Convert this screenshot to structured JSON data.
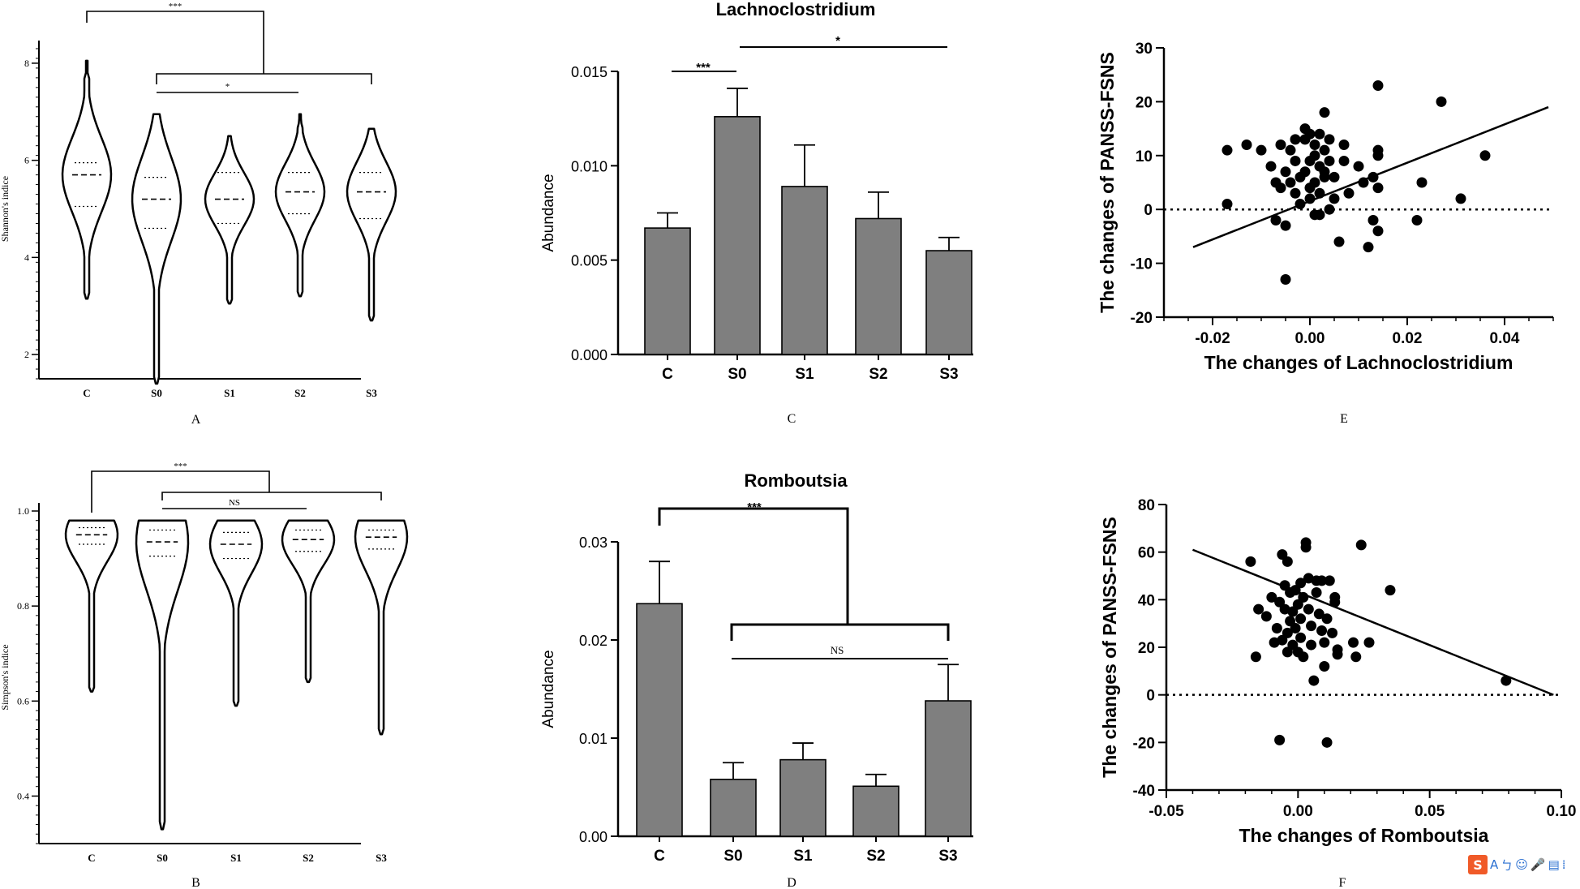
{
  "chart_data": [
    {
      "id": "A",
      "type": "violin",
      "panel_label": "A",
      "ylabel": "Shannon's indice",
      "ylim": [
        1.5,
        8.5
      ],
      "yticks": [
        2,
        4,
        6,
        8
      ],
      "categories": [
        "C",
        "S0",
        "S1",
        "S2",
        "S3"
      ],
      "groups": [
        {
          "name": "C",
          "min": 3.15,
          "max": 8.05,
          "q1": 5.05,
          "median": 5.7,
          "q3": 5.95
        },
        {
          "name": "S0",
          "min": 1.4,
          "max": 6.95,
          "q1": 4.6,
          "median": 5.2,
          "q3": 5.65
        },
        {
          "name": "S1",
          "min": 3.05,
          "max": 6.5,
          "q1": 4.7,
          "median": 5.2,
          "q3": 5.75
        },
        {
          "name": "S2",
          "min": 3.2,
          "max": 6.95,
          "q1": 4.9,
          "median": 5.35,
          "q3": 5.75
        },
        {
          "name": "S3",
          "min": 2.7,
          "max": 6.65,
          "q1": 4.8,
          "median": 5.35,
          "q3": 5.75
        }
      ],
      "annotations": [
        {
          "from": "C",
          "to": "S0-S3",
          "label": "***"
        },
        {
          "from": "S0",
          "to": "S3",
          "label": ""
        },
        {
          "from": "S0",
          "to": "S2",
          "label": "*"
        }
      ]
    },
    {
      "id": "B",
      "type": "violin",
      "panel_label": "B",
      "ylabel": "Simpson's indice",
      "ylim": [
        0.3,
        1.0
      ],
      "yticks": [
        0.4,
        0.6,
        0.8,
        1.0
      ],
      "categories": [
        "C",
        "S0",
        "S1",
        "S2",
        "S3"
      ],
      "groups": [
        {
          "name": "C",
          "min": 0.62,
          "max": 0.98,
          "q1": 0.93,
          "median": 0.95,
          "q3": 0.965
        },
        {
          "name": "S0",
          "min": 0.33,
          "max": 0.98,
          "q1": 0.905,
          "median": 0.935,
          "q3": 0.96
        },
        {
          "name": "S1",
          "min": 0.59,
          "max": 0.98,
          "q1": 0.9,
          "median": 0.93,
          "q3": 0.955
        },
        {
          "name": "S2",
          "min": 0.64,
          "max": 0.98,
          "q1": 0.915,
          "median": 0.94,
          "q3": 0.96
        },
        {
          "name": "S3",
          "min": 0.53,
          "max": 0.98,
          "q1": 0.92,
          "median": 0.945,
          "q3": 0.96
        }
      ],
      "annotations": [
        {
          "from": "C",
          "to": "S0-S3",
          "label": "***"
        },
        {
          "from": "S0",
          "to": "S3",
          "label": ""
        },
        {
          "from": "S0",
          "to": "S2",
          "label": "NS"
        }
      ]
    },
    {
      "id": "C",
      "type": "bar",
      "panel_label": "C",
      "title": "Lachnoclostridium",
      "xlabel": "",
      "ylabel": "Abundance",
      "ylim": [
        0,
        0.015
      ],
      "yticks": [
        "0.000",
        "0.005",
        "0.010",
        "0.015"
      ],
      "categories": [
        "C",
        "S0",
        "S1",
        "S2",
        "S3"
      ],
      "values": [
        0.0067,
        0.0126,
        0.0089,
        0.0072,
        0.0055
      ],
      "errors": [
        0.0008,
        0.0015,
        0.0022,
        0.0014,
        0.0007
      ],
      "annotations": [
        {
          "from": "C",
          "to": "S0",
          "label": "***"
        },
        {
          "from": "S0",
          "to": "S3",
          "label": "*"
        }
      ]
    },
    {
      "id": "D",
      "type": "bar",
      "panel_label": "D",
      "title": "Romboutsia",
      "xlabel": "",
      "ylabel": "Abundance",
      "ylim": [
        0,
        0.03
      ],
      "yticks": [
        "0.00",
        "0.01",
        "0.02",
        "0.03"
      ],
      "categories": [
        "C",
        "S0",
        "S1",
        "S2",
        "S3"
      ],
      "values": [
        0.0237,
        0.0058,
        0.0078,
        0.0051,
        0.0138
      ],
      "errors": [
        0.0043,
        0.0017,
        0.0017,
        0.0012,
        0.0037
      ],
      "annotations": [
        {
          "from": "C",
          "to": "S0-S3",
          "label": "***"
        },
        {
          "from": "S0",
          "to": "S3",
          "label": "NS"
        }
      ]
    },
    {
      "id": "E",
      "type": "scatter",
      "panel_label": "E",
      "xlabel": "The changes of Lachnoclostridium",
      "ylabel": "The changes of PANSS-FSNS",
      "xlim": [
        -0.03,
        0.05
      ],
      "ylim": [
        -20,
        30
      ],
      "xticks": [
        "-0.02",
        "0.00",
        "0.02",
        "0.04"
      ],
      "yticks": [
        "-20",
        "-10",
        "0",
        "10",
        "20",
        "30"
      ],
      "fit_line": [
        [
          -0.024,
          -7
        ],
        [
          0.049,
          19
        ]
      ],
      "reference_line_y": 0,
      "points": [
        [
          -0.017,
          1
        ],
        [
          -0.017,
          11
        ],
        [
          -0.013,
          12
        ],
        [
          -0.01,
          11
        ],
        [
          -0.008,
          8
        ],
        [
          -0.007,
          5
        ],
        [
          -0.007,
          -2
        ],
        [
          -0.006,
          4
        ],
        [
          -0.006,
          12
        ],
        [
          -0.005,
          -13
        ],
        [
          -0.005,
          -3
        ],
        [
          -0.005,
          7
        ],
        [
          -0.004,
          5
        ],
        [
          -0.004,
          11
        ],
        [
          -0.003,
          13
        ],
        [
          -0.003,
          3
        ],
        [
          -0.003,
          9
        ],
        [
          -0.002,
          6
        ],
        [
          -0.002,
          1
        ],
        [
          -0.001,
          13
        ],
        [
          -0.001,
          15
        ],
        [
          -0.001,
          7
        ],
        [
          0.0,
          14
        ],
        [
          0.0,
          2
        ],
        [
          0.0,
          9
        ],
        [
          0.0,
          4
        ],
        [
          0.001,
          -1
        ],
        [
          0.001,
          12
        ],
        [
          0.001,
          5
        ],
        [
          0.001,
          10
        ],
        [
          0.002,
          8
        ],
        [
          0.002,
          -1
        ],
        [
          0.002,
          14
        ],
        [
          0.002,
          3
        ],
        [
          0.003,
          6
        ],
        [
          0.003,
          11
        ],
        [
          0.003,
          18
        ],
        [
          0.003,
          7
        ],
        [
          0.004,
          9
        ],
        [
          0.004,
          0
        ],
        [
          0.004,
          13
        ],
        [
          0.005,
          6
        ],
        [
          0.005,
          2
        ],
        [
          0.006,
          -6
        ],
        [
          0.007,
          12
        ],
        [
          0.007,
          9
        ],
        [
          0.008,
          3
        ],
        [
          0.01,
          8
        ],
        [
          0.011,
          5
        ],
        [
          0.012,
          -7
        ],
        [
          0.013,
          -2
        ],
        [
          0.013,
          6
        ],
        [
          0.014,
          -4
        ],
        [
          0.014,
          4
        ],
        [
          0.014,
          10
        ],
        [
          0.014,
          11
        ],
        [
          0.014,
          23
        ],
        [
          0.022,
          -2
        ],
        [
          0.023,
          5
        ],
        [
          0.027,
          20
        ],
        [
          0.031,
          2
        ],
        [
          0.036,
          10
        ]
      ]
    },
    {
      "id": "F",
      "type": "scatter",
      "panel_label": "F",
      "xlabel": "The changes of Romboutsia",
      "ylabel": "The changes of PANSS-FSNS",
      "xlim": [
        -0.05,
        0.1
      ],
      "ylim": [
        -40,
        80
      ],
      "xticks": [
        "-0.05",
        "0.00",
        "0.05",
        "0.10"
      ],
      "yticks": [
        "-40",
        "-20",
        "0",
        "20",
        "40",
        "60",
        "80"
      ],
      "fit_line": [
        [
          -0.04,
          61
        ],
        [
          0.097,
          0
        ]
      ],
      "reference_line_y": 0,
      "points": [
        [
          -0.018,
          56
        ],
        [
          -0.016,
          16
        ],
        [
          -0.015,
          36
        ],
        [
          -0.012,
          33
        ],
        [
          -0.01,
          41
        ],
        [
          -0.009,
          22
        ],
        [
          -0.008,
          28
        ],
        [
          -0.007,
          39
        ],
        [
          -0.007,
          -19
        ],
        [
          -0.006,
          59
        ],
        [
          -0.006,
          23
        ],
        [
          -0.005,
          46
        ],
        [
          -0.005,
          36
        ],
        [
          -0.004,
          56
        ],
        [
          -0.004,
          26
        ],
        [
          -0.004,
          18
        ],
        [
          -0.003,
          43
        ],
        [
          -0.003,
          31
        ],
        [
          -0.002,
          21
        ],
        [
          -0.002,
          35
        ],
        [
          -0.001,
          44
        ],
        [
          -0.001,
          28
        ],
        [
          0.0,
          38
        ],
        [
          0.0,
          18
        ],
        [
          0.001,
          47
        ],
        [
          0.001,
          24
        ],
        [
          0.001,
          32
        ],
        [
          0.002,
          41
        ],
        [
          0.002,
          16
        ],
        [
          0.003,
          64
        ],
        [
          0.003,
          62
        ],
        [
          0.004,
          49
        ],
        [
          0.004,
          36
        ],
        [
          0.005,
          29
        ],
        [
          0.005,
          21
        ],
        [
          0.006,
          6
        ],
        [
          0.007,
          43
        ],
        [
          0.007,
          48
        ],
        [
          0.008,
          34
        ],
        [
          0.009,
          48
        ],
        [
          0.009,
          27
        ],
        [
          0.01,
          22
        ],
        [
          0.01,
          12
        ],
        [
          0.011,
          32
        ],
        [
          0.011,
          -20
        ],
        [
          0.012,
          48
        ],
        [
          0.013,
          26
        ],
        [
          0.014,
          41
        ],
        [
          0.014,
          39
        ],
        [
          0.015,
          17
        ],
        [
          0.015,
          19
        ],
        [
          0.021,
          22
        ],
        [
          0.022,
          16
        ],
        [
          0.024,
          63
        ],
        [
          0.027,
          22
        ],
        [
          0.035,
          44
        ],
        [
          0.079,
          6
        ]
      ]
    }
  ],
  "ime_toolbar": {
    "logo": "S",
    "items": [
      "A",
      "ㄅ",
      "☺",
      "🎤",
      "▤",
      "⁞"
    ]
  }
}
